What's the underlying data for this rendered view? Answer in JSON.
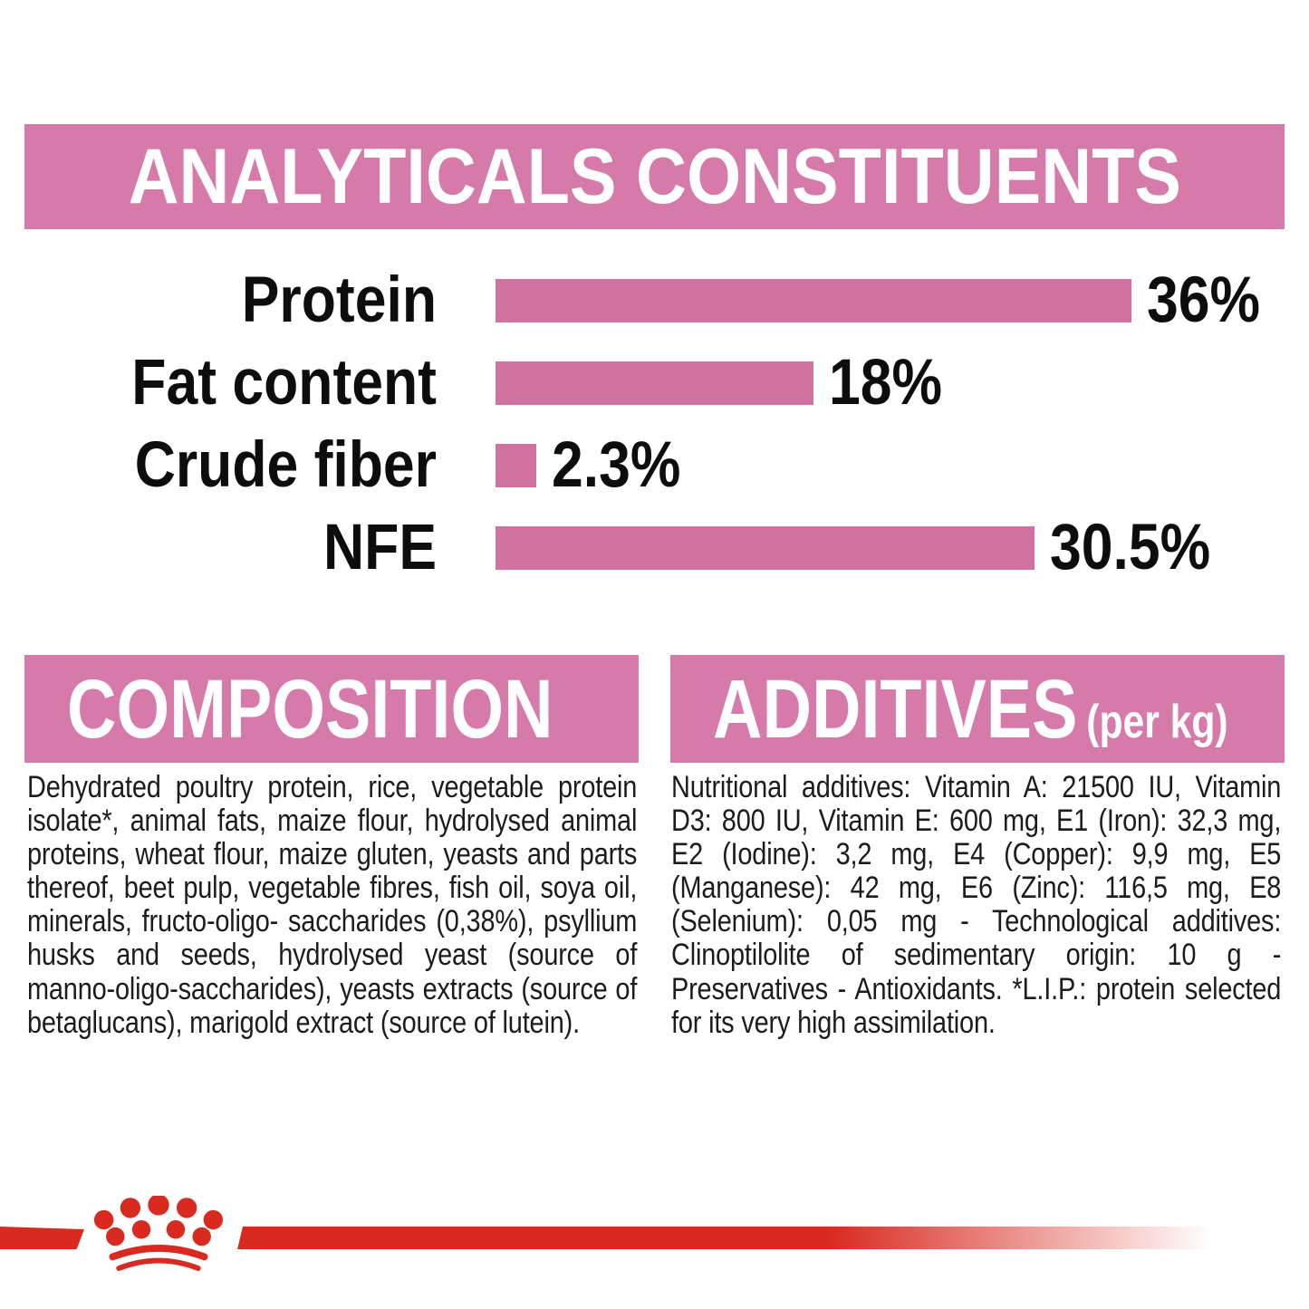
{
  "colors": {
    "pink_banner": "#d67aa9",
    "pink_bar": "#d1719f",
    "red": "#d92a20",
    "text": "#1c1c1c"
  },
  "analyticals": {
    "title": "ANALYTICALS CONSTITUENTS"
  },
  "chart_data": {
    "type": "bar",
    "orientation": "horizontal",
    "title": "ANALYTICALS CONSTITUENTS",
    "categories": [
      "Protein",
      "Fat content",
      "Crude fiber",
      "NFE"
    ],
    "values": [
      36,
      18,
      2.3,
      30.5
    ],
    "value_labels": [
      "36%",
      "18%",
      "2.3%",
      "30.5%"
    ],
    "unit": "%",
    "xlim": [
      0,
      36
    ],
    "grid": false,
    "bar_color": "#d1719f",
    "label_color": "#0d0d0d"
  },
  "composition": {
    "title": "COMPOSITION",
    "body": "Dehydrated poultry protein, rice, vegetable protein isolate*, animal fats, maize flour, hydrolysed animal proteins, wheat flour, maize gluten, yeasts and parts thereof, beet pulp, vegetable fibres, fish oil, soya oil, minerals, fructo-oligo- saccharides (0,38%), psyllium husks and seeds, hydrolysed yeast (source of manno-oligo-saccharides), yeasts extracts (source of betaglucans), marigold extract (source of lutein)."
  },
  "additives": {
    "title": "ADDITIVES",
    "title_suffix": "(per kg)",
    "body": "Nutritional additives: Vitamin A: 21500 IU, Vitamin D3: 800 IU, Vitamin E: 600 mg, E1 (Iron): 32,3 mg, E2 (Iodine): 3,2 mg, E4 (Copper): 9,9 mg, E5 (Manganese): 42 mg, E6 (Zinc): 116,5 mg, E8 (Selenium): 0,05 mg - Technological additives: Clinoptilolite of sedimentary origin: 10 g - Preservatives - Antioxidants. *L.I.P.: protein selected for its very high assimilation."
  },
  "footer": {
    "logo": "royal-canin-crown"
  }
}
